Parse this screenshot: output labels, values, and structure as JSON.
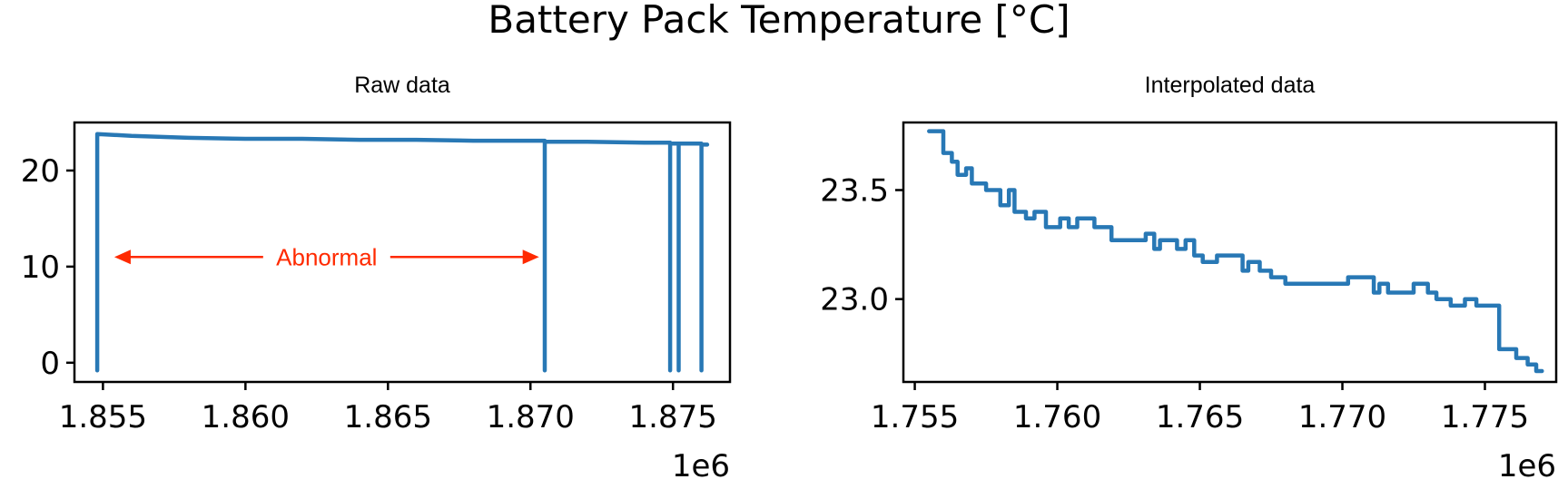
{
  "figure": {
    "title": "Battery Pack Temperature [°C]"
  },
  "chart_data": [
    {
      "type": "line",
      "title": "Raw data",
      "xlabel": "",
      "ylabel": "",
      "x_offset_label": "1e6",
      "xlim": [
        1854000,
        1877000
      ],
      "ylim": [
        -2,
        25
      ],
      "xticks": [
        1855000,
        1860000,
        1865000,
        1870000,
        1875000
      ],
      "xtick_labels": [
        "1.855",
        "1.860",
        "1.865",
        "1.870",
        "1.875"
      ],
      "yticks": [
        0,
        10,
        20
      ],
      "ytick_labels": [
        "0",
        "10",
        "20"
      ],
      "color": "#2878b5",
      "series": [
        {
          "x": [
            1854800,
            1854800,
            1856000,
            1858000,
            1860000,
            1862000,
            1864000,
            1866000,
            1868000,
            1870500,
            1870500,
            1870500,
            1872000,
            1874000,
            1874900,
            1874900,
            1874900,
            1875200,
            1875200,
            1875200,
            1876000,
            1876000,
            1876000,
            1876200
          ],
          "y": [
            -0.8,
            23.8,
            23.6,
            23.4,
            23.3,
            23.3,
            23.2,
            23.2,
            23.1,
            23.1,
            -0.8,
            23.0,
            23.0,
            22.9,
            22.9,
            -0.8,
            22.8,
            22.8,
            -0.8,
            22.8,
            22.8,
            -0.8,
            22.7,
            22.7
          ]
        }
      ],
      "annotation": {
        "text": "Abnormal",
        "from_x": 1855400,
        "to_x": 1870300,
        "y": 11,
        "color": "#ff2a00"
      }
    },
    {
      "type": "line",
      "title": "Interpolated data",
      "xlabel": "",
      "ylabel": "",
      "x_offset_label": "1e6",
      "xlim": [
        1754600,
        1777500
      ],
      "ylim": [
        22.62,
        23.81
      ],
      "xticks": [
        1755000,
        1760000,
        1765000,
        1770000,
        1775000
      ],
      "xtick_labels": [
        "1.755",
        "1.760",
        "1.765",
        "1.770",
        "1.775"
      ],
      "yticks": [
        23.0,
        23.5
      ],
      "ytick_labels": [
        "23.0",
        "23.5"
      ],
      "color": "#2878b5",
      "series": [
        {
          "x": [
            1755500,
            1756000,
            1756000,
            1756300,
            1756300,
            1756500,
            1756500,
            1756800,
            1756800,
            1757000,
            1757000,
            1757200,
            1757200,
            1757500,
            1757500,
            1758000,
            1758000,
            1758300,
            1758300,
            1758500,
            1758500,
            1758700,
            1758700,
            1758900,
            1758900,
            1759200,
            1759200,
            1759400,
            1759400,
            1759600,
            1759600,
            1760100,
            1760100,
            1760400,
            1760400,
            1760700,
            1760700,
            1761000,
            1761000,
            1761300,
            1761300,
            1761900,
            1761900,
            1762300,
            1762300,
            1763100,
            1763100,
            1763400,
            1763400,
            1763600,
            1763600,
            1764200,
            1764200,
            1764500,
            1764500,
            1764800,
            1764800,
            1765100,
            1765100,
            1765600,
            1765600,
            1766500,
            1766500,
            1766700,
            1766700,
            1767100,
            1767100,
            1767500,
            1767500,
            1768000,
            1768000,
            1768700,
            1768700,
            1770200,
            1770200,
            1771100,
            1771100,
            1771300,
            1771300,
            1771600,
            1771600,
            1772500,
            1772500,
            1773000,
            1773000,
            1773300,
            1773300,
            1773800,
            1773800,
            1774300,
            1774300,
            1774700,
            1774700,
            1775500,
            1775500,
            1776100,
            1776100,
            1776500,
            1776500,
            1776800,
            1776800,
            1777000
          ],
          "y": [
            23.77,
            23.77,
            23.67,
            23.67,
            23.63,
            23.63,
            23.57,
            23.57,
            23.6,
            23.6,
            23.53,
            23.53,
            23.53,
            23.53,
            23.5,
            23.5,
            23.43,
            23.43,
            23.5,
            23.5,
            23.4,
            23.4,
            23.4,
            23.4,
            23.37,
            23.37,
            23.4,
            23.4,
            23.4,
            23.4,
            23.33,
            23.33,
            23.37,
            23.37,
            23.33,
            23.33,
            23.37,
            23.37,
            23.37,
            23.37,
            23.33,
            23.33,
            23.27,
            23.27,
            23.27,
            23.27,
            23.3,
            23.3,
            23.23,
            23.23,
            23.27,
            23.27,
            23.23,
            23.23,
            23.27,
            23.27,
            23.2,
            23.2,
            23.17,
            23.17,
            23.2,
            23.2,
            23.13,
            23.13,
            23.17,
            23.17,
            23.13,
            23.13,
            23.1,
            23.1,
            23.07,
            23.07,
            23.07,
            23.07,
            23.1,
            23.1,
            23.03,
            23.03,
            23.07,
            23.07,
            23.03,
            23.03,
            23.07,
            23.07,
            23.03,
            23.03,
            23.0,
            23.0,
            22.97,
            22.97,
            23.0,
            23.0,
            22.97,
            22.97,
            22.77,
            22.77,
            22.73,
            22.73,
            22.7,
            22.7,
            22.67,
            22.67
          ]
        }
      ]
    }
  ]
}
